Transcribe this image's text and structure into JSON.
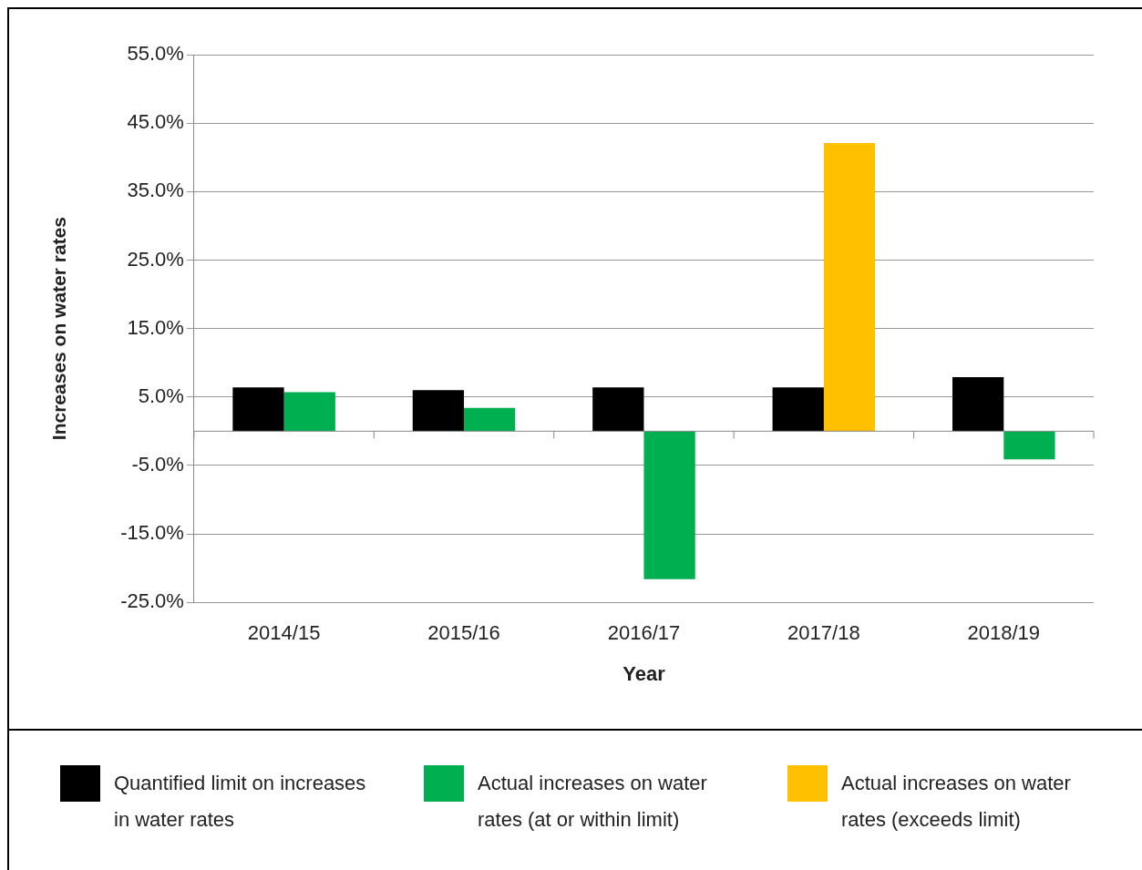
{
  "chart_data": {
    "type": "bar",
    "xlabel": "Year",
    "ylabel": "Increases on water rates",
    "categories": [
      "2014/15",
      "2015/16",
      "2016/17",
      "2017/18",
      "2018/19"
    ],
    "series": [
      {
        "name": "Quantified limit on increases in water rates",
        "color": "#000000",
        "values": [
          6.4,
          6.0,
          6.4,
          6.4,
          7.9
        ]
      },
      {
        "name": "Actual increases on water rates (at or within limit)",
        "color": "#00b050",
        "values": [
          5.7,
          3.4,
          -21.6,
          null,
          -4.1
        ]
      },
      {
        "name": "Actual increases on water rates (exceeds limit)",
        "color": "#ffc000",
        "values": [
          null,
          null,
          null,
          42.1,
          null
        ]
      }
    ],
    "ylim": [
      -25,
      55
    ],
    "yticks": [
      {
        "value": -25,
        "label": "-25.0%"
      },
      {
        "value": -15,
        "label": "-15.0%"
      },
      {
        "value": -5,
        "label": "-5.0%"
      },
      {
        "value": 5,
        "label": "5.0%"
      },
      {
        "value": 15,
        "label": "15.0%"
      },
      {
        "value": 25,
        "label": "25.0%"
      },
      {
        "value": 35,
        "label": "35.0%"
      },
      {
        "value": 45,
        "label": "45.0%"
      },
      {
        "value": 55,
        "label": "55.0%"
      }
    ],
    "grid": "y",
    "legend": "bottom"
  }
}
